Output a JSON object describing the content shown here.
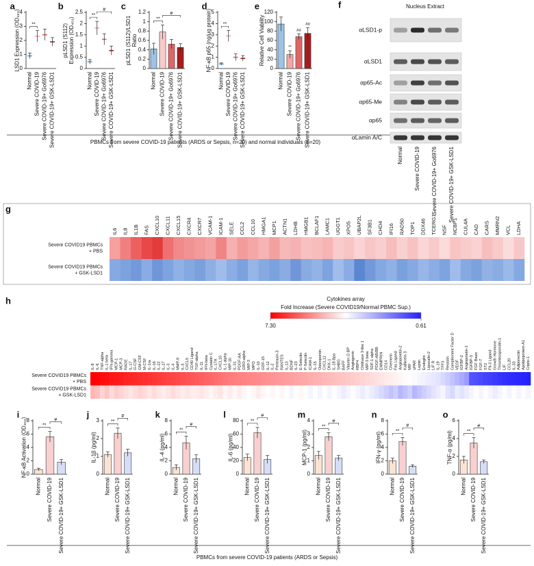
{
  "figure": {
    "caption_top": "PBMCs from severe COVID-19 patients (ARDS or Sepsis, n=20) and normal individuals (n=20)",
    "caption_bottom": "PBMCs from severe COVID-19 patients (ARDS or Sepsis)"
  },
  "blot": {
    "label": "f",
    "title": "Nucleus Extract",
    "rows": [
      "αLSD1-p",
      "αLSD1",
      "αp65-Ac",
      "αp65-Me",
      "αp65",
      "αLamin A/C"
    ],
    "lanes": [
      "Normal",
      "Severe COVID-19",
      "Severe COVID-19+ Go6976",
      "Severe COVID-19+ GSK-LSD1"
    ]
  },
  "chart_data": [
    {
      "type": "dot",
      "label": "a",
      "ylabel": [
        "LSD1 Expression (OD₄₅₀)"
      ],
      "categories": [
        "Normal",
        "Severe COVID-19",
        "Severe COVID-19+ Go6976",
        "Severe COVID-19+ GSK-LSD1"
      ],
      "values": [
        0.9,
        2.3,
        2.4,
        1.9
      ],
      "errors": [
        0.2,
        0.4,
        0.4,
        0.3
      ],
      "colors": [
        "#5b9bd5",
        "#f4a6a6",
        "#e06666",
        "#a61c1c"
      ],
      "ylim": [
        0,
        4
      ],
      "yticks": [
        0,
        1,
        2,
        3,
        4
      ],
      "annotations": [
        "**"
      ]
    },
    {
      "type": "dot",
      "label": "b",
      "ylabel": [
        "pLSD1 (S112)",
        "Expression (OD₄₅₀)"
      ],
      "categories": [
        "Normal",
        "Severe COVID-19",
        "Severe COVID-19+ Go6976",
        "Severe COVID-19+ GSK-LSD1"
      ],
      "values": [
        0.3,
        1.8,
        1.3,
        0.8
      ],
      "errors": [
        0.1,
        0.3,
        0.25,
        0.2
      ],
      "colors": [
        "#5b9bd5",
        "#f4a6a6",
        "#e06666",
        "#a61c1c"
      ],
      "ylim": [
        0,
        2.5
      ],
      "yticks": [
        0,
        0.5,
        1,
        1.5,
        2,
        2.5
      ],
      "annotations": [
        "**",
        "#"
      ]
    },
    {
      "type": "bar",
      "label": "c",
      "ylabel": [
        "pLSD1 (S112)/LSD1",
        "Ratio"
      ],
      "categories": [
        "Normal",
        "Severe COVID-19",
        "Severe COVID-19+ Go6976",
        "Severe COVID-19+ GSK-LSD1"
      ],
      "values": [
        0.42,
        0.78,
        0.52,
        0.45
      ],
      "errors": [
        0.12,
        0.15,
        0.1,
        0.08
      ],
      "colors": [
        "#9dc3e6",
        "#f8cbcb",
        "#e06666",
        "#a61c1c"
      ],
      "ylim": [
        0,
        1.2
      ],
      "yticks": [
        0,
        0.2,
        0.4,
        0.6,
        0.8,
        1,
        1.2
      ],
      "annotations": [
        "**",
        "#"
      ]
    },
    {
      "type": "dot",
      "label": "d",
      "ylabel": [
        "NF-κB p65 (ng/μg protein)"
      ],
      "categories": [
        "Normal",
        "Severe COVID-19",
        "Severe COVID-19+ Go6976",
        "Severe COVID-19+ GSK-LSD1"
      ],
      "values": [
        0.4,
        2.9,
        1.0,
        0.9
      ],
      "errors": [
        0.1,
        0.5,
        0.3,
        0.25
      ],
      "colors": [
        "#5b9bd5",
        "#f4a6a6",
        "#e06666",
        "#a61c1c"
      ],
      "ylim": [
        0,
        5
      ],
      "yticks": [
        0,
        1,
        2,
        3,
        4,
        5
      ],
      "annotations": [
        "**"
      ]
    },
    {
      "type": "bar",
      "label": "e",
      "ylabel": [
        "Relative Cell Viability"
      ],
      "categories": [
        "Normal",
        "Severe COVID-19",
        "Severe COVID-19+ Go6976",
        "Severe COVID-19+ GSK-LSD1"
      ],
      "values": [
        95,
        30,
        68,
        75
      ],
      "errors": [
        15,
        8,
        6,
        12
      ],
      "colors": [
        "#9dc3e6",
        "#f4a6a6",
        "#e06666",
        "#a61c1c"
      ],
      "ylim": [
        0,
        120
      ],
      "yticks": [
        0,
        20,
        40,
        60,
        80,
        100,
        120
      ],
      "bar_annotations": [
        null,
        "**",
        "##",
        "##"
      ]
    },
    {
      "type": "heatmap",
      "label": "g",
      "columns": [
        "IL6",
        "IL8",
        "IL1B",
        "FAS",
        "CXCL10",
        "CXCL11",
        "CXCL15",
        "CXCR4",
        "CXCR7",
        "VCAM-1",
        "ICAM-1",
        "SELE",
        "CCL2",
        "CCL10",
        "HMGA1",
        "MCP1",
        "ACTN1",
        "LDHB",
        "HMGB1",
        "BCLAF1",
        "LAMC1",
        "UGGT1",
        "XPO5",
        "UBAP2L",
        "SF3B1",
        "CHD4",
        "IFI16",
        "RAD50",
        "TOP1",
        "DDX46",
        "TCERG1",
        "NSF",
        "NCBP1",
        "CUL4A",
        "CAD",
        "CARS",
        "MMRN2",
        "VCL",
        "LDHA"
      ],
      "rows": [
        [
          "Severe COVID19 PBMCs",
          "+ PBS"
        ],
        [
          "Severe COVID19 PBMCs",
          "+ GSK-LSD1"
        ]
      ],
      "colors": [
        [
          "#f6a0a0",
          "#f08080",
          "#ec6060",
          "#e84848",
          "#e43c3c",
          "#ee7070",
          "#f08a8a",
          "#f29292",
          "#f39a9a",
          "#f4a4a4",
          "#f08484",
          "#f6b0b0",
          "#f49c9c",
          "#f5a6a6",
          "#f7b4b4",
          "#f3a0a0",
          "#f7b8b8",
          "#f6b2b2",
          "#f8c0c0",
          "#f7bcbc",
          "#f6b4b4",
          "#f9cccc",
          "#f8c4c4",
          "#fad4d4",
          "#f8c6c6",
          "#f9cece",
          "#f7bcbc",
          "#f9d0d0",
          "#f8c2c2",
          "#fad6d6",
          "#f9caca",
          "#fbdada",
          "#f8c4c4",
          "#f9cccc",
          "#fad2d2",
          "#f7bebe",
          "#f9caca",
          "#fbdcdc",
          "#f8c8c8"
        ],
        [
          "#86a9e1",
          "#7da3de",
          "#7399db",
          "#8aace3",
          "#6f96d9",
          "#7ea4df",
          "#90b1e5",
          "#84a8e1",
          "#7aa0dd",
          "#8eafe4",
          "#a0bcea",
          "#8cade3",
          "#7ba1de",
          "#96b5e7",
          "#86a9e1",
          "#7ca2de",
          "#8aace3",
          "#6f96d9",
          "#88abe2",
          "#93b3e6",
          "#7ea4df",
          "#a2bdeb",
          "#8aace3",
          "#5a86d2",
          "#7399db",
          "#84a8e1",
          "#90b1e5",
          "#7aa0dd",
          "#86a9e1",
          "#98b7e8",
          "#8cade3",
          "#7ea4df",
          "#a0bcea",
          "#86a9e1",
          "#7ca2de",
          "#92b2e5",
          "#8aace3",
          "#9ab8e8",
          "#84a8e1"
        ]
      ]
    },
    {
      "type": "heatmap",
      "label": "h",
      "title": "Cytokines array",
      "subtitle": "Fold Increase (Severe COVID19/Normal PBMC Sup.)",
      "log": true,
      "colorbar": {
        "ticks": [
          {
            "value": 7.3,
            "label": "7.30"
          },
          0.61
        ],
        "colors": [
          "#ff0000",
          "#ffffff",
          "#2222ff"
        ]
      },
      "columns": [
        "IL-8",
        "IL-6",
        "TNF-alpha",
        "IL-1 beta",
        "IFN-gamma",
        "MCP-1",
        "MCP-3",
        "RAGE",
        "IL-17",
        "G-CSF",
        "GM-CSF",
        "M-CSF",
        "IL-1ra",
        "IL-16",
        "IL-22",
        "IL-27",
        "IL-3",
        "IL-4",
        "MMP-9",
        "IL-5",
        "CXCL5",
        "CD40 Ligand",
        "TGF-alpha",
        "IL-11",
        "IFN-beta",
        "Cystatin C",
        "IL-17A",
        "CXCL10",
        "IL-1 alpha",
        "MIP-1b",
        "IL-31",
        "PDGF-AA",
        "GRO-alpha",
        "MIP-3",
        "MPO",
        "IL-10",
        "GDF-15",
        "IL-12",
        "IL-2",
        "Pentraxin-3",
        "RANTES",
        "IL-13",
        "BDNF",
        "IL-23",
        "E-Selectin",
        "P-Selectin",
        "ICAM-1",
        "IL-15",
        "Osteopontin",
        "CXCL11",
        "DKK-1",
        "IL-18 Bpa",
        "SHBG",
        "BAFF",
        "Vitamin D BP",
        "Angiogenin",
        "RBP4",
        "Chitinase 3-like 1",
        "MIP-3 beta",
        "SDF-1 alpha",
        "PDGF-AB/BB",
        "EMMPRIN",
        "CD14",
        "Chemerin",
        "Fas Ligand",
        "Angiopoietin-2",
        "Kallikrein 3",
        "MIF",
        "uPAR",
        "Leptin",
        "Endoglin",
        "Lipocalin-2",
        "LIF R",
        "IL-19",
        "TFF3",
        "Resistin",
        "Complement Factor D",
        "VEGF",
        "IGFBP-2",
        "Angiopoietin-1",
        "IGFBP-3",
        "FGF Basic",
        "FGF-7",
        "ST2",
        "Flt-3 Ligand",
        "Growth Hormone",
        "Thrombospondin-1",
        "LIF",
        "CCL20",
        "IL-33",
        "Adiponectin",
        "Apolipoprotein A1",
        "Cripto-1"
      ],
      "rows": [
        [
          "Severe COVID19 PBMCs",
          "+ PBS"
        ],
        [
          "Severe COVID19 PBMCs",
          "+ GSK-LSD1"
        ]
      ],
      "values": [
        [
          7.3,
          7.1,
          6.9,
          6.8,
          6.6,
          6.5,
          6.4,
          6.2,
          6.1,
          6.0,
          5.9,
          5.8,
          5.7,
          5.6,
          5.5,
          5.4,
          5.3,
          5.2,
          5.1,
          5.0,
          4.9,
          4.8,
          4.7,
          4.6,
          4.5,
          4.4,
          4.3,
          4.2,
          4.1,
          4.0,
          3.95,
          3.9,
          3.85,
          3.8,
          3.75,
          3.7,
          3.65,
          3.6,
          3.55,
          3.5,
          3.45,
          3.4,
          3.35,
          3.3,
          3.25,
          3.2,
          3.15,
          3.1,
          3.05,
          3.0,
          2.95,
          2.9,
          2.85,
          2.8,
          2.75,
          2.7,
          2.65,
          2.6,
          2.55,
          2.5,
          2.45,
          2.4,
          2.35,
          2.3,
          2.25,
          2.2,
          2.15,
          2.1,
          2.05,
          2.0,
          1.95,
          1.9,
          1.85,
          1.8,
          1.7,
          1.6,
          1.5,
          1.4,
          1.3,
          1.2,
          0.8,
          0.78,
          0.76,
          0.74,
          0.72,
          0.7,
          0.68,
          0.66,
          0.65,
          0.64,
          0.63,
          0.62,
          0.61
        ],
        [
          3.0,
          2.9,
          2.6,
          2.8,
          2.5,
          2.7,
          2.6,
          2.5,
          2.4,
          2.5,
          2.6,
          2.5,
          2.4,
          2.5,
          2.4,
          2.3,
          2.4,
          2.5,
          2.4,
          2.3,
          2.4,
          2.3,
          2.3,
          2.4,
          2.3,
          2.2,
          2.3,
          2.4,
          2.2,
          2.3,
          2.2,
          2.3,
          2.2,
          2.1,
          2.2,
          2.3,
          2.2,
          2.1,
          2.2,
          2.1,
          2.2,
          2.1,
          2.0,
          2.1,
          2.2,
          2.1,
          2.0,
          2.1,
          2.0,
          2.1,
          2.0,
          2.1,
          2.0,
          1.9,
          2.0,
          2.1,
          2.0,
          1.9,
          2.0,
          1.9,
          1.8,
          1.7,
          1.6,
          1.5,
          1.6,
          1.4,
          1.5,
          1.6,
          1.4,
          1.5,
          1.6,
          1.7,
          1.8,
          1.9,
          2.0,
          1.8,
          1.7,
          1.9,
          1.8,
          1.9,
          2.0,
          2.1,
          2.0,
          2.1,
          2.0,
          1.9,
          2.0,
          2.1,
          2.0,
          2.1,
          2.0,
          2.1,
          2.0
        ]
      ]
    },
    {
      "type": "bar",
      "label": "i",
      "ylabel": [
        "NF-κB Activation (OD₄₅₀)"
      ],
      "categories": [
        "Normal",
        "Severe COVID-19",
        "Severe COVID-19+ GSK-LSD1"
      ],
      "values": [
        0.7,
        5.6,
        1.8
      ],
      "errors": [
        0.2,
        0.8,
        0.4
      ],
      "colors": [
        "#fbe3d4",
        "#f9d0d0",
        "#d6ddf7"
      ],
      "ylim": [
        0,
        8
      ],
      "yticks": [
        0,
        2,
        4,
        6,
        8
      ],
      "annotations": [
        "**",
        "#"
      ]
    },
    {
      "type": "bar",
      "label": "j",
      "ylabel": [
        "IL-1β (pg/ml)"
      ],
      "categories": [
        "Normal",
        "Severe COVID-19",
        "Severe COVID-19+ GSK-LSD1"
      ],
      "values": [
        1.1,
        2.3,
        1.2
      ],
      "errors": [
        0.15,
        0.3,
        0.2
      ],
      "colors": [
        "#fbe3d4",
        "#f9d0d0",
        "#d6ddf7"
      ],
      "ylim": [
        0,
        3
      ],
      "yticks": [
        0,
        1,
        2,
        3
      ],
      "annotations": [
        "**",
        "#"
      ]
    },
    {
      "type": "bar",
      "label": "k",
      "ylabel": [
        "IL-4 (pg/ml)"
      ],
      "categories": [
        "Normal",
        "Severe COVID-19",
        "Severe COVID-19+ GSK-LSD1"
      ],
      "values": [
        1.0,
        4.7,
        2.3
      ],
      "errors": [
        0.4,
        1.0,
        0.6
      ],
      "colors": [
        "#fbe3d4",
        "#f9d0d0",
        "#d6ddf7"
      ],
      "ylim": [
        0,
        8
      ],
      "yticks": [
        0,
        2,
        4,
        6,
        8
      ],
      "annotations": [
        "**",
        "#"
      ]
    },
    {
      "type": "bar",
      "label": "l",
      "ylabel": [
        "IL-6 (pg/ml)"
      ],
      "categories": [
        "Normal",
        "Severe COVID-19",
        "Severe COVID-19+ GSK-LSD1"
      ],
      "values": [
        25,
        62,
        22
      ],
      "errors": [
        5,
        8,
        6
      ],
      "colors": [
        "#fbe3d4",
        "#f9d0d0",
        "#d6ddf7"
      ],
      "ylim": [
        0,
        80
      ],
      "yticks": [
        0,
        20,
        40,
        60,
        80
      ],
      "annotations": [
        "**",
        "#"
      ]
    },
    {
      "type": "bar",
      "label": "m",
      "ylabel": [
        "MCP-1 (pg/ml)"
      ],
      "categories": [
        "Normal",
        "Severe COVID-19",
        "Severe COVID-19+ GSK-LSD1"
      ],
      "values": [
        1.4,
        2.8,
        1.2
      ],
      "errors": [
        0.3,
        0.3,
        0.2
      ],
      "colors": [
        "#fbe3d4",
        "#f9d0d0",
        "#d6ddf7"
      ],
      "ylim": [
        0,
        4
      ],
      "yticks": [
        0,
        1,
        2,
        3,
        4
      ],
      "annotations": [
        "**",
        "#"
      ]
    },
    {
      "type": "bar",
      "label": "n",
      "ylabel": [
        "IFN-γ (pg/ml)"
      ],
      "categories": [
        "Normal",
        "Severe COVID-19",
        "Severe COVID-19+ GSK-LSD1"
      ],
      "values": [
        2.0,
        4.9,
        1.2
      ],
      "errors": [
        0.4,
        0.6,
        0.2
      ],
      "colors": [
        "#fbe3d4",
        "#f9d0d0",
        "#d6ddf7"
      ],
      "ylim": [
        0,
        8
      ],
      "yticks": [
        0,
        2,
        4,
        6,
        8
      ],
      "annotations": [
        "**",
        "#"
      ]
    },
    {
      "type": "bar",
      "label": "o",
      "ylabel": [
        "TNF-α (pg/ml)"
      ],
      "categories": [
        "Normal",
        "Severe COVID-19",
        "Severe COVID-19+ GSK-LSD1"
      ],
      "values": [
        1.6,
        3.5,
        1.4
      ],
      "errors": [
        0.4,
        0.6,
        0.2
      ],
      "colors": [
        "#fbe3d4",
        "#f9d0d0",
        "#d6ddf7"
      ],
      "ylim": [
        0,
        6
      ],
      "yticks": [
        0,
        2,
        4,
        6
      ],
      "annotations": [
        "**",
        "#"
      ]
    }
  ]
}
